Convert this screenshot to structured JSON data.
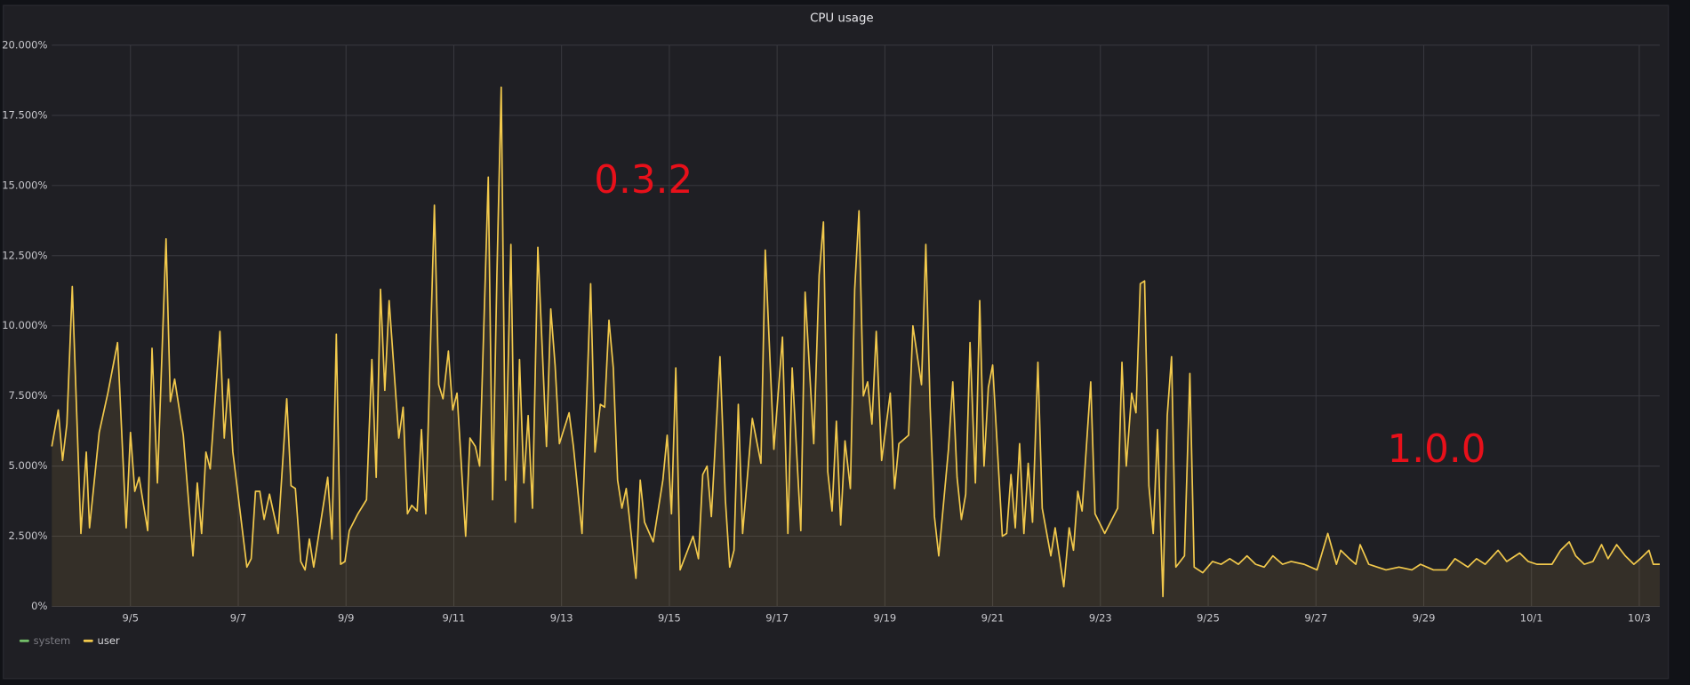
{
  "chart_data": {
    "type": "line",
    "title": "CPU usage",
    "annotations": [
      "0.3.2",
      "1.0.0"
    ],
    "xlim": [
      3.54,
      33.38
    ],
    "xticks": [
      {
        "value": 5,
        "label": "9/5"
      },
      {
        "value": 7,
        "label": "9/7"
      },
      {
        "value": 9,
        "label": "9/9"
      },
      {
        "value": 11,
        "label": "9/11"
      },
      {
        "value": 13,
        "label": "9/13"
      },
      {
        "value": 15,
        "label": "9/15"
      },
      {
        "value": 17,
        "label": "9/17"
      },
      {
        "value": 19,
        "label": "9/19"
      },
      {
        "value": 21,
        "label": "9/21"
      },
      {
        "value": 23,
        "label": "9/23"
      },
      {
        "value": 25,
        "label": "9/25"
      },
      {
        "value": 27,
        "label": "9/27"
      },
      {
        "value": 29,
        "label": "9/29"
      },
      {
        "value": 31,
        "label": "10/1"
      },
      {
        "value": 33,
        "label": "10/3"
      }
    ],
    "ylim": [
      0,
      20
    ],
    "yticks": [
      {
        "value": 0,
        "label": "0%"
      },
      {
        "value": 2.5,
        "label": "2.500%"
      },
      {
        "value": 5,
        "label": "5.000%"
      },
      {
        "value": 7.5,
        "label": "7.500%"
      },
      {
        "value": 10,
        "label": "10.000%"
      },
      {
        "value": 12.5,
        "label": "12.500%"
      },
      {
        "value": 15,
        "label": "15.000%"
      },
      {
        "value": 17.5,
        "label": "17.500%"
      },
      {
        "value": 20,
        "label": "20.000%"
      }
    ],
    "grid": true,
    "legend": "bottom-left",
    "x": [
      3.54,
      3.66,
      3.74,
      3.82,
      3.92,
      4.08,
      4.18,
      4.24,
      4.42,
      4.58,
      4.76,
      4.92,
      5.0,
      5.08,
      5.16,
      5.32,
      5.4,
      5.5,
      5.66,
      5.74,
      5.82,
      5.98,
      6.16,
      6.24,
      6.32,
      6.4,
      6.48,
      6.66,
      6.74,
      6.82,
      6.9,
      7.16,
      7.24,
      7.32,
      7.4,
      7.48,
      7.58,
      7.74,
      7.9,
      7.98,
      8.06,
      8.16,
      8.24,
      8.32,
      8.4,
      8.66,
      8.74,
      8.82,
      8.9,
      8.98,
      9.06,
      9.22,
      9.38,
      9.48,
      9.56,
      9.64,
      9.72,
      9.8,
      9.98,
      10.06,
      10.14,
      10.22,
      10.32,
      10.4,
      10.48,
      10.64,
      10.72,
      10.8,
      10.9,
      10.98,
      11.06,
      11.22,
      11.3,
      11.4,
      11.48,
      11.64,
      11.72,
      11.8,
      11.88,
      11.96,
      12.06,
      12.14,
      12.22,
      12.3,
      12.38,
      12.46,
      12.56,
      12.72,
      12.8,
      12.88,
      12.96,
      13.14,
      13.22,
      13.38,
      13.54,
      13.62,
      13.72,
      13.8,
      13.88,
      13.96,
      14.04,
      14.12,
      14.2,
      14.38,
      14.46,
      14.54,
      14.7,
      14.88,
      14.96,
      15.04,
      15.12,
      15.2,
      15.44,
      15.54,
      15.62,
      15.7,
      15.78,
      15.94,
      16.04,
      16.12,
      16.2,
      16.28,
      16.36,
      16.54,
      16.7,
      16.78,
      16.94,
      17.1,
      17.2,
      17.28,
      17.44,
      17.52,
      17.68,
      17.78,
      17.86,
      17.94,
      18.02,
      18.1,
      18.18,
      18.26,
      18.36,
      18.44,
      18.52,
      18.6,
      18.68,
      18.76,
      18.84,
      18.94,
      19.1,
      19.18,
      19.26,
      19.44,
      19.52,
      19.68,
      19.76,
      19.84,
      19.92,
      20.0,
      20.18,
      20.26,
      20.34,
      20.42,
      20.5,
      20.58,
      20.68,
      20.76,
      20.84,
      20.92,
      21.0,
      21.18,
      21.26,
      21.34,
      21.42,
      21.5,
      21.58,
      21.66,
      21.74,
      21.84,
      21.92,
      22.08,
      22.16,
      22.32,
      22.42,
      22.5,
      22.58,
      22.66,
      22.82,
      22.9,
      23.08,
      23.32,
      23.4,
      23.48,
      23.58,
      23.66,
      23.74,
      23.82,
      23.9,
      23.98,
      24.06,
      24.16,
      24.24,
      24.32,
      24.4,
      24.56,
      24.66,
      24.74,
      24.9,
      25.08,
      25.24,
      25.4,
      25.56,
      25.72,
      25.88,
      26.04,
      26.2,
      26.38,
      26.54,
      26.78,
      27.02,
      27.22,
      27.38,
      27.46,
      27.62,
      27.74,
      27.82,
      27.98,
      28.14,
      28.3,
      28.54,
      28.78,
      28.94,
      29.18,
      29.42,
      29.58,
      29.82,
      29.98,
      30.14,
      30.38,
      30.54,
      30.78,
      30.94,
      31.1,
      31.38,
      31.54,
      31.7,
      31.82,
      31.98,
      32.14,
      32.3,
      32.42,
      32.58,
      32.74,
      32.9,
      33.02,
      33.18,
      33.26,
      33.38
    ],
    "series": [
      {
        "name": "system",
        "color": "#73bf69",
        "hidden": true
      },
      {
        "name": "user",
        "color": "#f2c94c",
        "values": [
          5.7,
          7.0,
          5.2,
          6.5,
          11.4,
          2.6,
          5.5,
          2.8,
          6.2,
          7.6,
          9.4,
          2.8,
          6.2,
          4.1,
          4.6,
          2.7,
          9.2,
          4.4,
          13.1,
          7.3,
          8.1,
          6.1,
          1.8,
          4.4,
          2.6,
          5.5,
          4.9,
          9.8,
          6.0,
          8.1,
          5.5,
          1.4,
          1.7,
          4.1,
          4.1,
          3.1,
          4.0,
          2.6,
          7.4,
          4.3,
          4.2,
          1.6,
          1.3,
          2.4,
          1.4,
          4.6,
          2.4,
          9.7,
          1.5,
          1.6,
          2.7,
          3.3,
          3.8,
          8.8,
          4.6,
          11.3,
          7.7,
          10.9,
          6.0,
          7.1,
          3.3,
          3.6,
          3.4,
          6.3,
          3.3,
          14.3,
          7.9,
          7.4,
          9.1,
          7.0,
          7.6,
          2.5,
          6.0,
          5.7,
          5.0,
          15.3,
          3.8,
          11.8,
          18.5,
          4.5,
          12.9,
          3.0,
          8.8,
          4.4,
          6.8,
          3.5,
          12.8,
          5.7,
          10.6,
          8.6,
          5.8,
          6.9,
          5.7,
          2.6,
          11.5,
          5.5,
          7.2,
          7.1,
          10.2,
          8.5,
          4.5,
          3.5,
          4.2,
          1.0,
          4.5,
          3.0,
          2.3,
          4.5,
          6.1,
          3.3,
          8.5,
          1.3,
          2.5,
          1.7,
          4.7,
          5.0,
          3.2,
          8.9,
          3.8,
          1.4,
          2.0,
          7.2,
          2.6,
          6.7,
          5.1,
          12.7,
          5.6,
          9.6,
          2.6,
          8.5,
          2.7,
          11.2,
          5.8,
          11.8,
          13.7,
          4.8,
          3.4,
          6.6,
          2.9,
          5.9,
          4.2,
          11.3,
          14.1,
          7.5,
          8.0,
          6.5,
          9.8,
          5.2,
          7.6,
          4.2,
          5.8,
          6.1,
          10.0,
          7.9,
          12.9,
          7.1,
          3.2,
          1.8,
          5.6,
          8.0,
          4.6,
          3.1,
          4.0,
          9.4,
          4.4,
          10.9,
          5.0,
          7.8,
          8.6,
          2.5,
          2.6,
          4.7,
          2.8,
          5.8,
          2.6,
          5.1,
          3.0,
          8.7,
          3.5,
          1.8,
          2.8,
          0.7,
          2.8,
          2.0,
          4.1,
          3.4,
          8.0,
          3.3,
          2.6,
          3.5,
          8.7,
          5.0,
          7.6,
          6.9,
          11.5,
          11.6,
          4.3,
          2.6,
          6.3,
          0.35,
          6.8,
          8.9,
          1.4,
          1.8,
          8.3,
          1.4,
          1.2,
          1.6,
          1.5,
          1.7,
          1.5,
          1.8,
          1.5,
          1.4,
          1.8,
          1.5,
          1.6,
          1.5,
          1.3,
          2.6,
          1.5,
          2.0,
          1.7,
          1.5,
          2.2,
          1.5,
          1.4,
          1.3,
          1.4,
          1.3,
          1.5,
          1.3,
          1.3,
          1.7,
          1.4,
          1.7,
          1.5,
          2.0,
          1.6,
          1.9,
          1.6,
          1.5,
          1.5,
          2.0,
          2.3,
          1.8,
          1.5,
          1.6,
          2.2,
          1.7,
          2.2,
          1.8,
          1.5,
          1.7,
          2.0,
          1.5,
          1.5
        ]
      }
    ]
  }
}
